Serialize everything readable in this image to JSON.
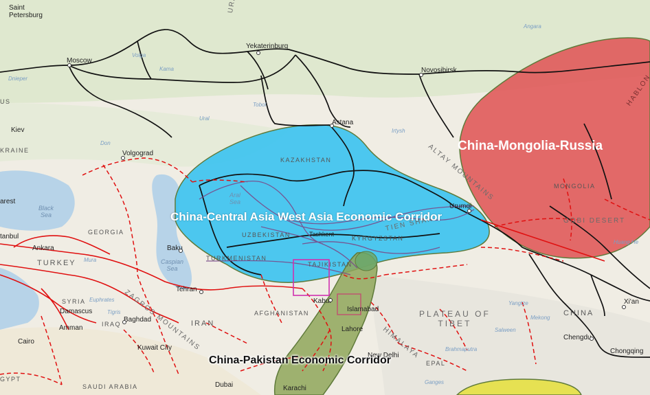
{
  "cities": [
    {
      "id": "saint-petersburg",
      "name": "Saint\nPetersburg"
    },
    {
      "id": "moscow",
      "name": "Moscow"
    },
    {
      "id": "yekaterinburg",
      "name": "Yekaterinburg"
    },
    {
      "id": "novosibirsk",
      "name": "Novosibirsk"
    },
    {
      "id": "astana",
      "name": "Astana"
    },
    {
      "id": "kiev",
      "name": "Kiev"
    },
    {
      "id": "volgograd",
      "name": "Volgograd"
    },
    {
      "id": "baku",
      "name": "Baku"
    },
    {
      "id": "tehran",
      "name": "Tehran"
    },
    {
      "id": "baghdad",
      "name": "Baghdad"
    },
    {
      "id": "damascus",
      "name": "Damascus"
    },
    {
      "id": "amman",
      "name": "Amman"
    },
    {
      "id": "cairo",
      "name": "Cairo"
    },
    {
      "id": "kuwait-city",
      "name": "Kuwait City"
    },
    {
      "id": "dubai",
      "name": "Dubai"
    },
    {
      "id": "karachi",
      "name": "Karachi"
    },
    {
      "id": "kabul",
      "name": "Kabul"
    },
    {
      "id": "tashkent",
      "name": "Tashkent"
    },
    {
      "id": "islamabad",
      "name": "Islamabad"
    },
    {
      "id": "lahore",
      "name": "Lahore"
    },
    {
      "id": "new-delhi",
      "name": "New Delhi"
    },
    {
      "id": "urumqi",
      "name": "Urumqi"
    },
    {
      "id": "chengdu",
      "name": "Chengdu"
    },
    {
      "id": "chongqing",
      "name": "Chongqing"
    },
    {
      "id": "xian",
      "name": "Xi'an"
    },
    {
      "id": "ankara",
      "name": "Ankara"
    },
    {
      "id": "istanbul",
      "name": "tanbul"
    },
    {
      "id": "bucharest",
      "name": "arest"
    }
  ],
  "countries": {
    "kazakhstan": "KAZAKHSTAN",
    "uzbekistan": "UZBEKISTAN",
    "turkmenistan": "TURKMENISTAN",
    "tajikistan": "TAJIKISTAN",
    "kyrgyzstan": "KYRGYZSTAN",
    "afghanistan": "AFGHANISTAN",
    "iran": "IRAN",
    "iraq": "IRAQ",
    "syria": "SYRIA",
    "turkey": "TURKEY",
    "georgia": "GEORGIA",
    "mongolia": "MONGOLIA",
    "china": "CHINA",
    "saudi_arabia": "SAUDI ARABIA",
    "egypt": "GYPT",
    "ukraine": "KRAINE",
    "belarus": "US",
    "nepal": "EPAL"
  },
  "water": {
    "black_sea": "Black\nSea",
    "caspian_sea": "Caspian\nSea",
    "aral_sea": "Aral\nSea"
  },
  "regions": {
    "ural": "URAL",
    "altay": "ALTAY MOUNTAINS",
    "tien_shan": "TIEN SHAN",
    "gobi": "GOBI DESERT",
    "plateau": "PLATEAU OF\nTIBET",
    "himalaya": "HIMALAYA",
    "zagros": "ZAGROS MOUNTAINS",
    "khangai": "HABLON"
  },
  "rivers": {
    "volga": "Volga",
    "kama": "Kama",
    "ural": "Ural",
    "tobol": "Tobol",
    "don": "Don",
    "irtysh": "Irtysh",
    "angara": "Angara",
    "huang_he": "Huang He",
    "yangtze": "Yangtze",
    "mekong": "Mekong",
    "salween": "Salween",
    "brahmaputra": "Brahmaputra",
    "ganges": "Ganges",
    "mura": "Mura",
    "euphrates": "Euphrates",
    "tigris": "Tigris",
    "dnieper": "Dnieper"
  },
  "corridors": {
    "cmr": {
      "label": "China-Mongolia-Russia",
      "color": "#e05a5a"
    },
    "ccawa": {
      "label": "China-Central Asia West Asia Economic Corridor",
      "color": "#3ec3f0"
    },
    "cpec": {
      "label": "China-Pakistan Economic Corridor",
      "color": "#8fa65a"
    },
    "bcim": {
      "color": "#e6e04a"
    }
  },
  "colors": {
    "railway": "#111111",
    "route_dashed": "#e01010",
    "route_solid": "#e01010",
    "purple_route": "#7a4a8a"
  }
}
